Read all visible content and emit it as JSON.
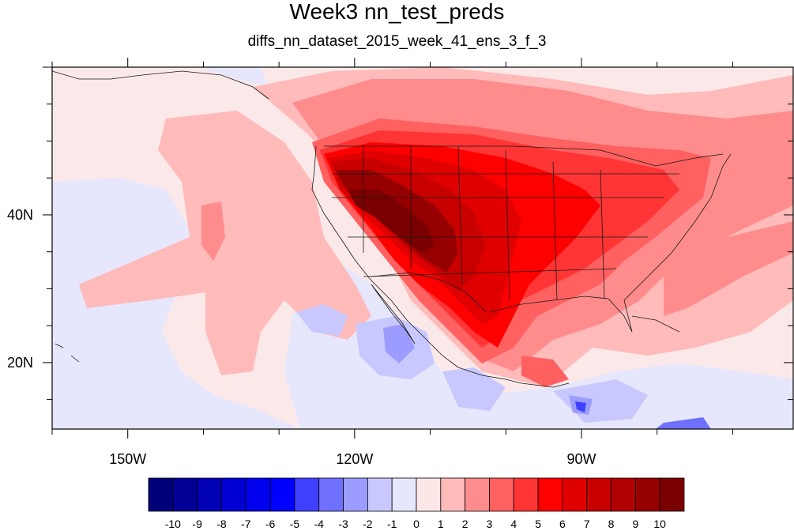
{
  "title": "Week3 nn_test_preds",
  "subtitle": "diffs_nn_dataset_2015_week_41_ens_3_f_3",
  "map": {
    "lon_range": [
      -160,
      -62
    ],
    "lat_range": [
      11,
      60
    ],
    "lon_ticks": [
      {
        "value": -150,
        "label": "150W"
      },
      {
        "value": -120,
        "label": "120W"
      },
      {
        "value": -90,
        "label": "90W"
      }
    ],
    "lat_ticks": [
      {
        "value": 40,
        "label": "40N"
      },
      {
        "value": 20,
        "label": "20N"
      }
    ],
    "background_color": "#fbe9e9"
  },
  "colorbar": {
    "labels": [
      "-10",
      "-9",
      "-8",
      "-7",
      "-6",
      "-5",
      "-4",
      "-3",
      "-2",
      "-1",
      "0",
      "1",
      "2",
      "3",
      "4",
      "5",
      "6",
      "7",
      "8",
      "9",
      "10"
    ],
    "colors": [
      "#00007a",
      "#000096",
      "#0000b4",
      "#0000d2",
      "#0000ee",
      "#0000ff",
      "#4040ff",
      "#7070ff",
      "#9c9cff",
      "#c8c8ff",
      "#e6e6fc",
      "#fde6e6",
      "#ffbaba",
      "#ff8c8c",
      "#ff6060",
      "#ff3434",
      "#ff0000",
      "#e00000",
      "#c80000",
      "#b00000",
      "#960000",
      "#7a0000"
    ]
  }
}
